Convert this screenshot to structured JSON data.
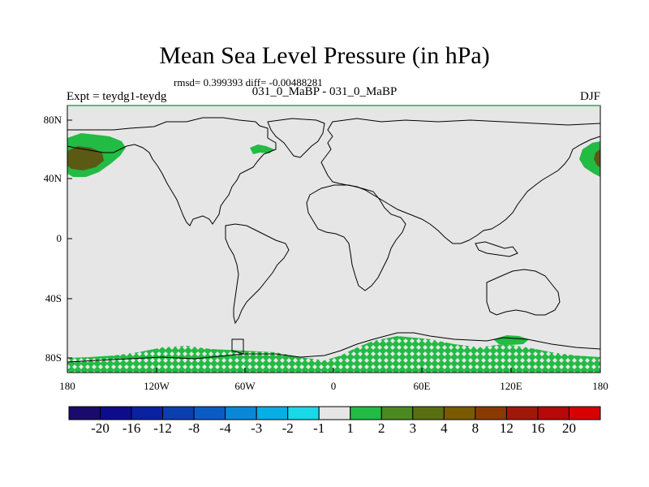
{
  "title": "Mean Sea Level Pressure (in hPa)",
  "stats_line": "rmsd= 0.399393 diff= -0.00488281",
  "experiment_label": "Expt = teydg1-teydg",
  "case_label": "031_0_MaBP - 031_0_MaBP",
  "season_label": "DJF",
  "lat_ticks": [
    "80N",
    "40N",
    "0",
    "40S",
    "80S"
  ],
  "lon_ticks": [
    "180",
    "120W",
    "60W",
    "0",
    "60E",
    "120E",
    "180"
  ],
  "colorbar": {
    "labels": [
      "-20",
      "-16",
      "-12",
      "-8",
      "-4",
      "-3",
      "-2",
      "-1",
      "1",
      "2",
      "3",
      "4",
      "8",
      "12",
      "16",
      "20"
    ],
    "colors": [
      "#1a0a6b",
      "#0d0d8c",
      "#0a22a0",
      "#0a3fb0",
      "#0a5cc4",
      "#0a88d8",
      "#08aee6",
      "#19d8ea",
      "#e6e6e6",
      "#22bb44",
      "#4a8a1e",
      "#5a7010",
      "#7a5a00",
      "#8a3a00",
      "#a01808",
      "#b80808",
      "#d80000"
    ]
  },
  "map": {
    "background": "#e6e6e6",
    "coast": "#000000",
    "anomaly_light": "#22bb44",
    "anomaly_dark": "#4a8a1e",
    "anomaly_brown": "#5a5a14"
  }
}
